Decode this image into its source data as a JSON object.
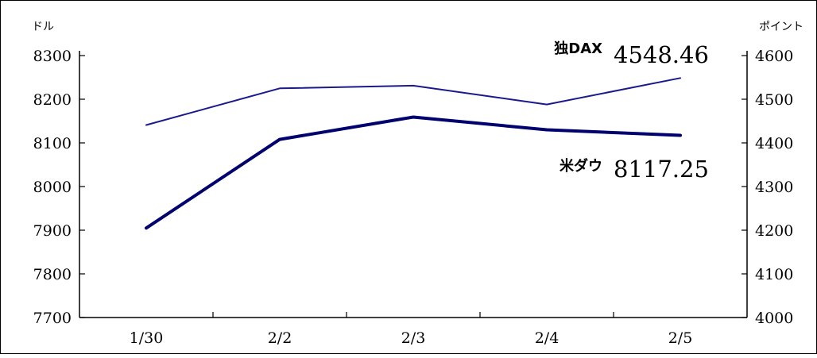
{
  "chart_data": {
    "type": "line",
    "categories": [
      "1/30",
      "2/2",
      "2/3",
      "2/4",
      "2/5"
    ],
    "left_axis": {
      "unit_label": "ドル",
      "ylim": [
        7700,
        8300
      ],
      "ticks": [
        "8300",
        "8200",
        "8100",
        "8000",
        "7900",
        "7800",
        "7700"
      ]
    },
    "right_axis": {
      "unit_label": "ポイント",
      "ylim": [
        4000,
        4600
      ],
      "ticks": [
        "4600",
        "4500",
        "4400",
        "4300",
        "4200",
        "4100",
        "4000"
      ]
    },
    "series": [
      {
        "name": "独DAX",
        "axis": "right",
        "values": [
          4441,
          4525,
          4531,
          4488,
          4548.46
        ],
        "latest_value": "4548.46",
        "color": "#1a1a8c",
        "weight": "thin"
      },
      {
        "name": "米ダウ",
        "axis": "left",
        "values": [
          7905,
          8108,
          8159,
          8130,
          8117.25
        ],
        "latest_value": "8117.25",
        "color": "#00006e",
        "weight": "thick"
      }
    ],
    "grid": false,
    "legend": "inline labels near lines (upper right)"
  }
}
